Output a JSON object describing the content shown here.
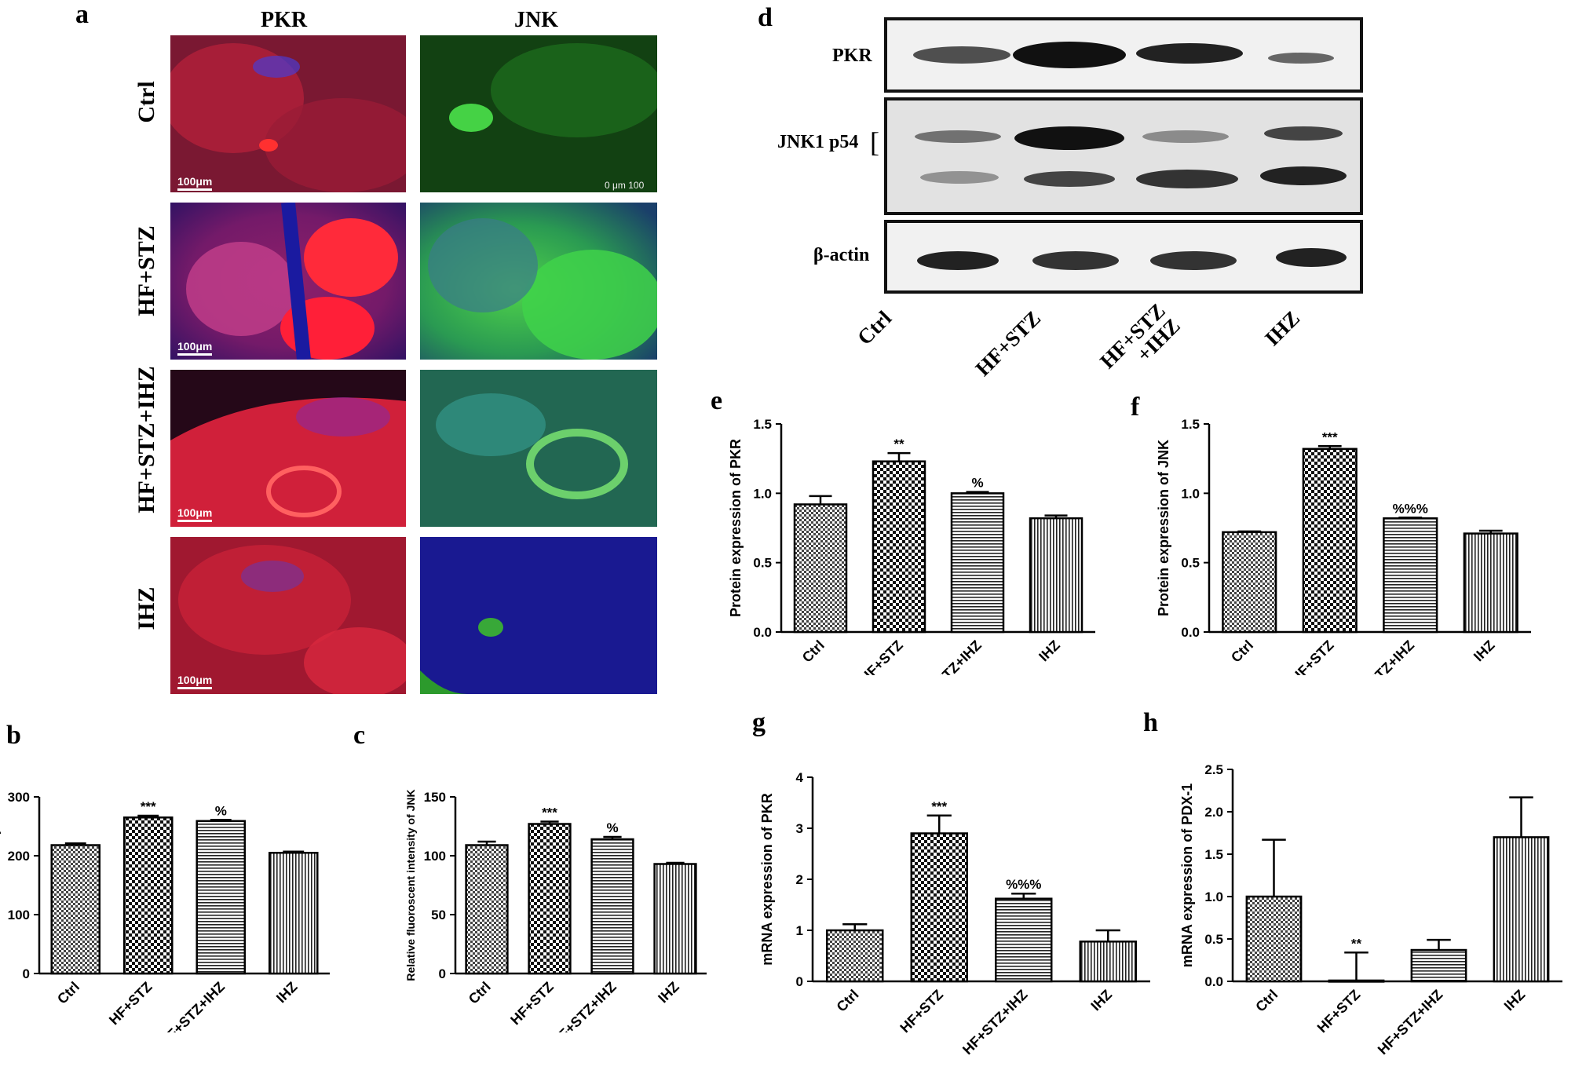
{
  "figure": {
    "panel_letters": [
      "a",
      "b",
      "c",
      "d",
      "e",
      "f",
      "g",
      "h"
    ],
    "panel_a": {
      "column_headers": [
        "PKR",
        "JNK"
      ],
      "row_labels": [
        "Ctrl",
        "HF+STZ",
        "HF+STZ+IHZ",
        "IHZ"
      ],
      "scale_bar_label": "100μm",
      "scale_bar_label_alt": "0 μm 100"
    },
    "panel_d": {
      "blot_labels": [
        "PKR",
        "JNK1 p54",
        "β-actin"
      ],
      "bracket": "[",
      "lane_labels": [
        "Ctrl",
        "HF+STZ",
        "HF+STZ\n+IHZ",
        "IHZ"
      ]
    }
  },
  "colors": {
    "pkr_stain": "#d11f2a",
    "jnk_stain": "#2fbf3a",
    "dapi": "#2a2ad6",
    "bar_edge": "#000000"
  },
  "chart_data": [
    {
      "id": "b",
      "type": "bar",
      "categories": [
        "Ctrl",
        "HF+STZ",
        "HF+STZ+IHZ",
        "IHZ"
      ],
      "values": [
        218,
        265,
        259,
        205
      ],
      "errors": [
        3,
        3,
        2,
        2
      ],
      "annotations": [
        "",
        "***",
        "%",
        ""
      ],
      "patterns": [
        "checker-fine",
        "checker",
        "hstripe",
        "vstripe"
      ],
      "ylabel": "Relative fluoroscent intensity of PKR",
      "ylim": [
        0,
        300
      ],
      "yticks": [
        0,
        100,
        200,
        300
      ]
    },
    {
      "id": "c",
      "type": "bar",
      "categories": [
        "Ctrl",
        "HF+STZ",
        "HF+STZ+IHZ",
        "IHZ"
      ],
      "values": [
        109,
        127,
        114,
        93
      ],
      "errors": [
        3,
        2,
        2,
        1
      ],
      "annotations": [
        "",
        "***",
        "%",
        ""
      ],
      "patterns": [
        "checker-fine",
        "checker",
        "hstripe",
        "vstripe"
      ],
      "ylabel": "Relative fluoroscent intensity of JNK",
      "ylim": [
        0,
        150
      ],
      "yticks": [
        0,
        50,
        100,
        150
      ]
    },
    {
      "id": "e",
      "type": "bar",
      "categories": [
        "Ctrl",
        "HF+STZ",
        "HF+STZ+IHZ",
        "IHZ"
      ],
      "values": [
        0.92,
        1.23,
        1.0,
        0.82
      ],
      "errors": [
        0.06,
        0.06,
        0.01,
        0.02
      ],
      "annotations": [
        "",
        "**",
        "%",
        ""
      ],
      "patterns": [
        "checker-fine",
        "checker",
        "hstripe",
        "vstripe"
      ],
      "ylabel": "Protein expression of PKR",
      "ylim": [
        0,
        1.5
      ],
      "yticks": [
        "0.0",
        "0.5",
        "1.0",
        "1.5"
      ]
    },
    {
      "id": "f",
      "type": "bar",
      "categories": [
        "Ctrl",
        "HF+STZ",
        "HF+STZ+IHZ",
        "IHZ"
      ],
      "values": [
        0.72,
        1.32,
        0.82,
        0.71
      ],
      "errors": [
        0.005,
        0.02,
        0.005,
        0.02
      ],
      "annotations": [
        "",
        "***",
        "%%%",
        ""
      ],
      "patterns": [
        "checker-fine",
        "checker",
        "hstripe",
        "vstripe"
      ],
      "ylabel": "Protein expression of JNK",
      "ylim": [
        0,
        1.5
      ],
      "yticks": [
        "0.0",
        "0.5",
        "1.0",
        "1.5"
      ]
    },
    {
      "id": "g",
      "type": "bar",
      "categories": [
        "Ctrl",
        "HF+STZ",
        "HF+STZ+IHZ",
        "IHZ"
      ],
      "values": [
        1.0,
        2.9,
        1.62,
        0.78
      ],
      "errors": [
        0.12,
        0.35,
        0.1,
        0.22
      ],
      "annotations": [
        "",
        "***",
        "%%%",
        ""
      ],
      "patterns": [
        "checker-fine",
        "checker",
        "hstripe",
        "vstripe"
      ],
      "ylabel": "mRNA expression of PKR",
      "ylim": [
        0,
        4
      ],
      "yticks": [
        "0",
        "1",
        "2",
        "3",
        "4"
      ]
    },
    {
      "id": "h",
      "type": "bar",
      "categories": [
        "Ctrl",
        "HF+STZ",
        "HF+STZ+IHZ",
        "IHZ"
      ],
      "values": [
        1.0,
        0.01,
        0.37,
        1.7
      ],
      "errors": [
        0.67,
        0.33,
        0.12,
        0.47
      ],
      "annotations": [
        "",
        "**",
        "",
        ""
      ],
      "patterns": [
        "checker-fine",
        "checker",
        "hstripe",
        "vstripe"
      ],
      "ylabel": "mRNA expression of PDX-1",
      "ylim": [
        0,
        2.5
      ],
      "yticks": [
        "0.0",
        "0.5",
        "1.0",
        "1.5",
        "2.0",
        "2.5"
      ]
    }
  ]
}
